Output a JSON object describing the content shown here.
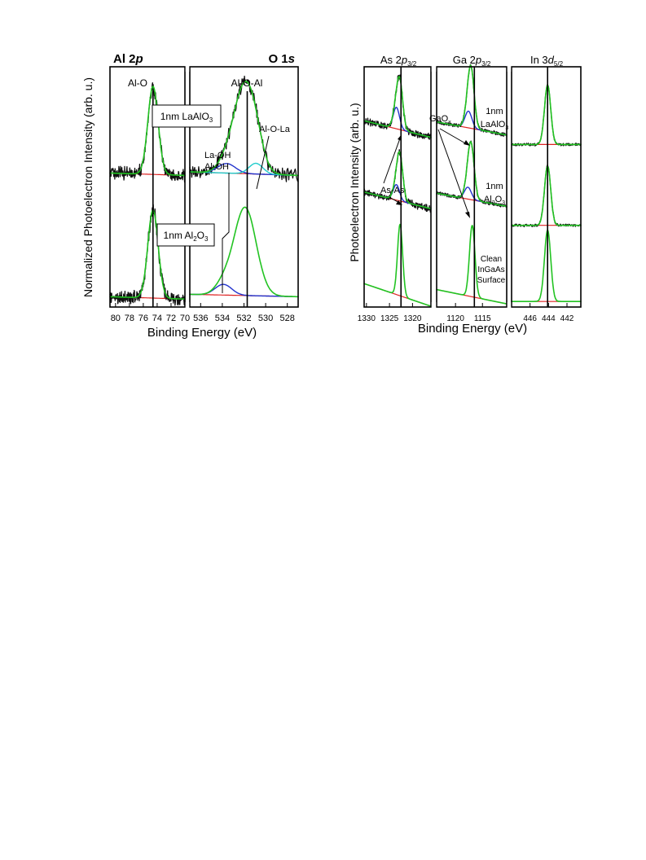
{
  "colors": {
    "data": "#111111",
    "envelope": "#22c322",
    "background": "#dd2222",
    "component": "#2233cc",
    "component2": "#22cccc",
    "arrow": "#000000"
  },
  "chart_data": [
    {
      "type": "line",
      "id": "left",
      "ylabel": "Normalized Photoelectron Intensity (arb. u.)",
      "xlabel": "Binding Energy (eV)",
      "panels": [
        {
          "id": "al2p",
          "title": "Al 2p",
          "title_prefix": "Al 2",
          "title_orbital": "p",
          "title_side": "left",
          "xlim": [
            80.8,
            70.0
          ],
          "ticks": [
            80,
            78,
            76,
            74,
            72,
            70
          ],
          "ref_lines": [
            {
              "x": 74.6,
              "label": "Al-O"
            }
          ],
          "spectra": [
            {
              "id": "al2p-laalo3",
              "offset": 0.56,
              "noise": 0.022,
              "background": {
                "left": 0.0,
                "right": -0.01
              },
              "components": [
                {
                  "center": 74.6,
                  "fwhm": 1.75,
                  "amp": 0.37,
                  "role": "envelope"
                }
              ]
            },
            {
              "id": "al2p-al2o3",
              "offset": 0.04,
              "noise": 0.022,
              "background": {
                "left": 0.0,
                "right": -0.01
              },
              "components": [
                {
                  "center": 74.6,
                  "fwhm": 1.75,
                  "amp": 0.37,
                  "role": "envelope"
                }
              ]
            }
          ]
        },
        {
          "id": "o1s",
          "title": "O 1s",
          "title_prefix": "O 1",
          "title_orbital": "s",
          "title_side": "right",
          "xlim": [
            537.0,
            527.0
          ],
          "ticks": [
            536,
            534,
            532,
            530,
            528
          ],
          "ref_lines": [
            {
              "x": 531.7,
              "label": "Al-O-Al"
            }
          ],
          "spectra": [
            {
              "id": "o1s-laalo3",
              "offset": 0.55,
              "noise": 0.022,
              "background": {
                "left": 0.015,
                "right": 0.0
              },
              "components": [
                {
                  "center": 531.9,
                  "fwhm": 2.4,
                  "amp": 0.37,
                  "role": "main"
                },
                {
                  "center": 533.6,
                  "fwhm": 1.9,
                  "amp": 0.04,
                  "role": "component"
                },
                {
                  "center": 530.9,
                  "fwhm": 1.5,
                  "amp": 0.045,
                  "role": "component2"
                }
              ]
            },
            {
              "id": "o1s-al2o3",
              "offset": 0.04,
              "noise": 0.0,
              "background": {
                "left": 0.01,
                "right": 0.0
              },
              "components": [
                {
                  "center": 531.9,
                  "fwhm": 2.4,
                  "amp": 0.37,
                  "role": "main"
                },
                {
                  "center": 533.9,
                  "fwhm": 1.8,
                  "amp": 0.045,
                  "role": "component"
                }
              ]
            }
          ]
        }
      ],
      "annotations": [
        {
          "id": "laalo3-box",
          "text_main": "1nm LaAlO",
          "sub": "3"
        },
        {
          "id": "al2o3-box",
          "text_main": "1nm Al",
          "sub1": "2",
          "mid": "O",
          "sub2": "3"
        },
        {
          "id": "la-oh",
          "line1": "La-OH",
          "line2": "Al-OH"
        },
        {
          "id": "al-o-la",
          "text": "Al-O-La"
        }
      ]
    },
    {
      "type": "line",
      "id": "right",
      "ylabel": "Photoelectron Intensity (arb. u.)",
      "xlabel": "Binding Energy (eV)",
      "panels": [
        {
          "id": "as2p",
          "title_prefix": "As 2",
          "title_orbital": "p",
          "title_sub": "3/2",
          "xlim": [
            1330.5,
            1316.0
          ],
          "ticks": [
            1330,
            1325,
            1320
          ],
          "ref_lines": [
            {
              "x": 1322.5
            }
          ],
          "spectra": [
            {
              "id": "as-laalo3",
              "offset": 0.74,
              "noise": 0.012,
              "background": {
                "left": 0.04,
                "right": -0.03
              },
              "components": [
                {
                  "center": 1322.7,
                  "fwhm": 1.5,
                  "amp": 0.17,
                  "role": "envelope"
                },
                {
                  "center": 1323.5,
                  "fwhm": 1.6,
                  "amp": 0.09,
                  "role": "component"
                }
              ]
            },
            {
              "id": "as-al2o3",
              "offset": 0.44,
              "noise": 0.012,
              "background": {
                "left": 0.04,
                "right": -0.03
              },
              "components": [
                {
                  "center": 1322.7,
                  "fwhm": 1.5,
                  "amp": 0.17,
                  "role": "envelope"
                },
                {
                  "center": 1323.5,
                  "fwhm": 1.6,
                  "amp": 0.065,
                  "role": "component"
                }
              ]
            },
            {
              "id": "as-clean",
              "offset": 0.02,
              "noise": 0.0,
              "background": {
                "left": 0.075,
                "right": -0.02
              },
              "components": [
                {
                  "center": 1322.7,
                  "fwhm": 1.3,
                  "amp": 0.3,
                  "role": "envelope"
                }
              ]
            }
          ]
        },
        {
          "id": "ga2p",
          "title_prefix": "Ga 2",
          "title_orbital": "p",
          "title_sub": "3/2",
          "xlim": [
            1123.5,
            1110.5
          ],
          "ticks": [
            1120,
            1115
          ],
          "ref_lines": [
            {
              "x": 1116.5
            }
          ],
          "spectra": [
            {
              "id": "ga-laalo3",
              "offset": 0.74,
              "noise": 0.006,
              "background": {
                "left": 0.035,
                "right": -0.02
              },
              "components": [
                {
                  "center": 1117.1,
                  "fwhm": 1.4,
                  "amp": 0.21,
                  "role": "envelope"
                },
                {
                  "center": 1117.6,
                  "fwhm": 1.5,
                  "amp": 0.07,
                  "role": "component"
                }
              ]
            },
            {
              "id": "ga-al2o3",
              "offset": 0.44,
              "noise": 0.006,
              "background": {
                "left": 0.035,
                "right": -0.02
              },
              "components": [
                {
                  "center": 1117.1,
                  "fwhm": 1.4,
                  "amp": 0.21,
                  "role": "envelope"
                },
                {
                  "center": 1117.7,
                  "fwhm": 1.5,
                  "amp": 0.05,
                  "role": "component"
                }
              ]
            },
            {
              "id": "ga-clean",
              "offset": 0.02,
              "noise": 0.0,
              "background": {
                "left": 0.05,
                "right": -0.01
              },
              "components": [
                {
                  "center": 1116.9,
                  "fwhm": 1.2,
                  "amp": 0.3,
                  "role": "envelope"
                }
              ]
            }
          ]
        },
        {
          "id": "in3d",
          "title_prefix": "In 3",
          "title_orbital": "d",
          "title_sub": "5/2",
          "xlim": [
            448.0,
            440.5
          ],
          "ticks": [
            446,
            444,
            442
          ],
          "ref_lines": [
            {
              "x": 444.1
            }
          ],
          "spectra": [
            {
              "id": "in-laalo3",
              "offset": 0.68,
              "noise": 0.004,
              "background": {
                "left": 0.0,
                "right": 0.0
              },
              "components": [
                {
                  "center": 444.1,
                  "fwhm": 0.8,
                  "amp": 0.25,
                  "role": "envelope"
                }
              ]
            },
            {
              "id": "in-al2o3",
              "offset": 0.34,
              "noise": 0.004,
              "background": {
                "left": 0.0,
                "right": 0.0
              },
              "components": [
                {
                  "center": 444.1,
                  "fwhm": 0.8,
                  "amp": 0.25,
                  "role": "envelope"
                }
              ]
            },
            {
              "id": "in-clean",
              "offset": 0.02,
              "noise": 0.0,
              "background": {
                "left": 0.0,
                "right": 0.0
              },
              "components": [
                {
                  "center": 444.1,
                  "fwhm": 0.8,
                  "amp": 0.3,
                  "role": "envelope"
                }
              ]
            }
          ]
        }
      ],
      "annotations": [
        {
          "id": "laalo3",
          "line1": "1nm",
          "line2_main": "LaAlO",
          "line2_sub": "3"
        },
        {
          "id": "al2o3",
          "line1": "1nm",
          "line2_main": "Al",
          "line2_sub1": "2",
          "line2_mid": "O",
          "line2_sub2": "3"
        },
        {
          "id": "clean",
          "line1": "Clean",
          "line2": "InGaAs",
          "line3": "Surface"
        },
        {
          "id": "gaox",
          "main": "GaO",
          "sub": "x"
        },
        {
          "id": "as-as",
          "text": "As-As"
        }
      ]
    }
  ]
}
